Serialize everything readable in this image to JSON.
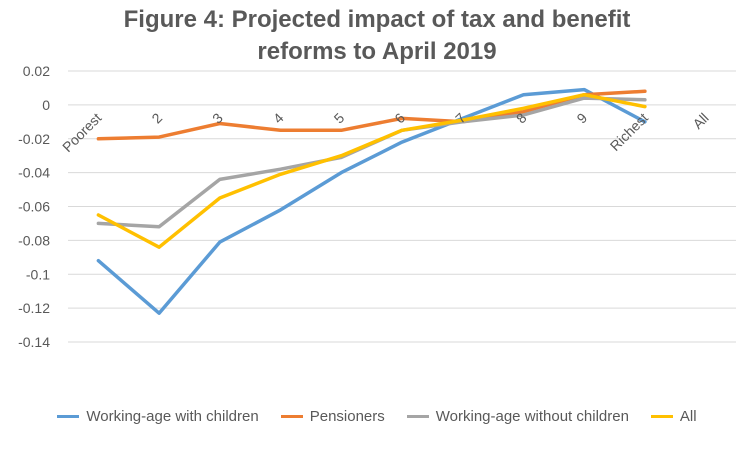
{
  "chart_data": {
    "type": "line",
    "title": "Figure 4: Projected impact of tax and benefit reforms to April 2019",
    "title_lines": [
      "Figure 4: Projected impact of tax and benefit",
      "reforms to April 2019"
    ],
    "categories": [
      "Poorest",
      "2",
      "3",
      "4",
      "5",
      "6",
      "7",
      "8",
      "9",
      "Richest",
      "All"
    ],
    "ylim": [
      -0.14,
      0.02
    ],
    "yticks": [
      0.02,
      0,
      -0.02,
      -0.04,
      -0.06,
      -0.08,
      -0.1,
      -0.12,
      -0.14
    ],
    "ytick_labels": [
      "0.02",
      "0",
      "-0.02",
      "-0.04",
      "-0.06",
      "-0.08",
      "-0.1",
      "-0.12",
      "-0.14"
    ],
    "grid": true,
    "legend_position": "bottom",
    "series": [
      {
        "name": "Working-age with children",
        "color": "#5B9BD5",
        "values": [
          -0.092,
          -0.123,
          -0.081,
          -0.062,
          -0.04,
          -0.022,
          -0.008,
          0.006,
          0.009,
          -0.01,
          null
        ]
      },
      {
        "name": "Pensioners",
        "color": "#ED7D31",
        "values": [
          -0.02,
          -0.019,
          -0.011,
          -0.015,
          -0.015,
          -0.008,
          -0.01,
          -0.004,
          0.006,
          0.008,
          null
        ]
      },
      {
        "name": "Working-age without children",
        "color": "#A5A5A5",
        "values": [
          -0.07,
          -0.072,
          -0.044,
          -0.038,
          -0.031,
          -0.015,
          -0.01,
          -0.006,
          0.004,
          0.003,
          null
        ]
      },
      {
        "name": "All",
        "color": "#FFC000",
        "values": [
          -0.065,
          -0.084,
          -0.055,
          -0.041,
          -0.03,
          -0.015,
          -0.009,
          -0.002,
          0.006,
          -0.001,
          null
        ]
      }
    ]
  }
}
